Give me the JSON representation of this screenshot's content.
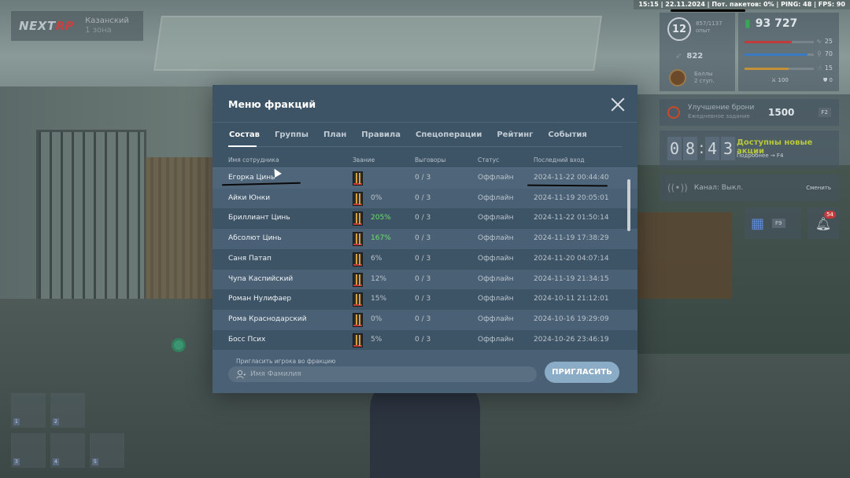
{
  "status_bar": "15:15 | 22.11.2024 | Пот. пакетов: 0% | PING: 48 | FPS: 90",
  "hud": {
    "brand_main": "NEXT",
    "brand_accent": "RP",
    "server_name": "Казанский",
    "server_sub": "1 зона",
    "level": "12",
    "exp_label_1": "857/1137",
    "exp_label_2": "опыт",
    "speed": "822",
    "money": "93 727",
    "health": "25",
    "armor": "70",
    "hunger": "15",
    "stat_a": "100",
    "stat_b": "0",
    "score_label_1": "Баллы",
    "score_label_2": "2 ступ.",
    "armor_task_title": "Улучшение брони",
    "armor_task_sub": "Ежедневное задание",
    "armor_task_value": "1500",
    "armor_task_key": "F2",
    "timer": [
      "0",
      "8",
      "4",
      "3"
    ],
    "promo_title": "Доступны новые акции",
    "promo_sub": "Подробнее → F4",
    "channel_label": "Канал: Выкл.",
    "channel_switch": "Сменить",
    "calendar_key": "F9",
    "bell_badge": "54",
    "slots": [
      "1",
      "2",
      "3",
      "4",
      "5"
    ]
  },
  "modal": {
    "title": "Меню фракций",
    "tabs": [
      {
        "label": "Состав",
        "active": true
      },
      {
        "label": "Группы",
        "active": false
      },
      {
        "label": "План",
        "active": false
      },
      {
        "label": "Правила",
        "active": false
      },
      {
        "label": "Спецоперации",
        "active": false
      },
      {
        "label": "Рейтинг",
        "active": false
      },
      {
        "label": "События",
        "active": false
      }
    ],
    "columns": {
      "name": "Имя сотрудника",
      "rank": "Звание",
      "warnings": "Выговоры",
      "status": "Статус",
      "last_login": "Последний вход"
    },
    "rows": [
      {
        "name": "Егорка Цинь",
        "rank_pct": "",
        "warnings": "0 / 3",
        "status": "Оффлайн",
        "last_login": "2024-11-22 00:44:40"
      },
      {
        "name": "Айки Юнки",
        "rank_pct": "0%",
        "warnings": "0 / 3",
        "status": "Оффлайн",
        "last_login": "2024-11-19 20:05:01"
      },
      {
        "name": "Бриллиант Цинь",
        "rank_pct": "205%",
        "warnings": "0 / 3",
        "status": "Оффлайн",
        "last_login": "2024-11-22 01:50:14"
      },
      {
        "name": "Абсолют Цинь",
        "rank_pct": "167%",
        "warnings": "0 / 3",
        "status": "Оффлайн",
        "last_login": "2024-11-19 17:38:29"
      },
      {
        "name": "Саня Патап",
        "rank_pct": "6%",
        "warnings": "0 / 3",
        "status": "Оффлайн",
        "last_login": "2024-11-20 04:07:14"
      },
      {
        "name": "Чупа Каспийский",
        "rank_pct": "12%",
        "warnings": "0 / 3",
        "status": "Оффлайн",
        "last_login": "2024-11-19 21:34:15"
      },
      {
        "name": "Роман Нулифаер",
        "rank_pct": "15%",
        "warnings": "0 / 3",
        "status": "Оффлайн",
        "last_login": "2024-10-11 21:12:01"
      },
      {
        "name": "Рома Краснодарский",
        "rank_pct": "0%",
        "warnings": "0 / 3",
        "status": "Оффлайн",
        "last_login": "2024-10-16 19:29:09"
      },
      {
        "name": "Босс Псих",
        "rank_pct": "5%",
        "warnings": "0 / 3",
        "status": "Оффлайн",
        "last_login": "2024-10-26 23:46:19"
      }
    ],
    "invite_label": "Пригласить игрока во фракцию",
    "invite_placeholder": "Имя Фамилия",
    "invite_value": "",
    "invite_button": "ПРИГЛАСИТЬ"
  },
  "colors": {
    "modal_bg": "#3d5366",
    "row_alt": "#4a6075",
    "good_pct": "#6be06b",
    "invite_button": "#8bacc7"
  },
  "icons": {
    "close": "close-icon",
    "rank": "rank-insignia-icon",
    "user": "user-icon",
    "money": "money-icon",
    "bell": "bell-icon",
    "calendar": "calendar-icon",
    "radio": "radio-icon"
  }
}
